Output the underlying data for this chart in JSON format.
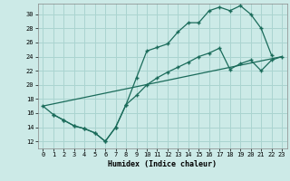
{
  "xlabel": "Humidex (Indice chaleur)",
  "xlim": [
    -0.5,
    23.5
  ],
  "ylim": [
    11.0,
    31.5
  ],
  "yticks": [
    12,
    14,
    16,
    18,
    20,
    22,
    24,
    26,
    28,
    30
  ],
  "xticks": [
    0,
    1,
    2,
    3,
    4,
    5,
    6,
    7,
    8,
    9,
    10,
    11,
    12,
    13,
    14,
    15,
    16,
    17,
    18,
    19,
    20,
    21,
    22,
    23
  ],
  "bg_color": "#cceae7",
  "grid_color": "#aad4d0",
  "line_color": "#1a6b5a",
  "line1_x": [
    0,
    1,
    2,
    3,
    4,
    5,
    6,
    7,
    8,
    9,
    10,
    11,
    12,
    13,
    14,
    15,
    16,
    17,
    18,
    19,
    20,
    21,
    22
  ],
  "line1_y": [
    17.0,
    15.8,
    15.0,
    14.2,
    13.8,
    13.2,
    12.0,
    14.0,
    17.2,
    21.0,
    24.8,
    25.3,
    25.8,
    27.5,
    28.8,
    28.8,
    30.5,
    31.0,
    30.5,
    31.2,
    30.0,
    28.0,
    24.2
  ],
  "line2_x": [
    1,
    2,
    3,
    4,
    5,
    6,
    7,
    8,
    9,
    10,
    11,
    12,
    13,
    14,
    15,
    16,
    17,
    18,
    19,
    20,
    21,
    22,
    23
  ],
  "line2_y": [
    15.8,
    15.0,
    14.2,
    13.8,
    13.2,
    12.0,
    14.0,
    17.2,
    18.5,
    20.0,
    21.0,
    21.8,
    22.5,
    23.2,
    24.0,
    24.5,
    25.2,
    22.2,
    23.0,
    23.5,
    22.0,
    23.5,
    24.0
  ],
  "line3_x": [
    0,
    23
  ],
  "line3_y": [
    17.0,
    24.0
  ]
}
